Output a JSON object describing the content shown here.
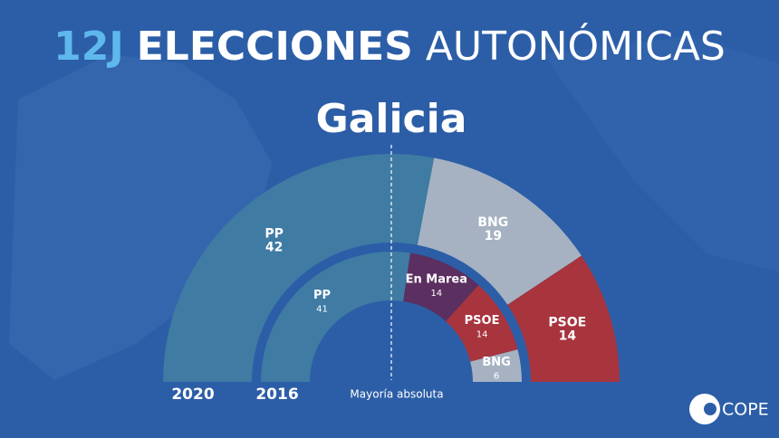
{
  "header": {
    "title": [
      "12J",
      "ELECCIONES",
      "AUTONÓMICAS"
    ],
    "subtitle": "Galicia"
  },
  "chart_data": [
    {
      "type": "semicircle",
      "label": "2020",
      "categories": [
        "PP",
        "BNG",
        "PSOE"
      ],
      "values": [
        42,
        19,
        14
      ],
      "colors": [
        "#3f7ba3",
        "#a6b2c2",
        "#a8343e"
      ]
    },
    {
      "type": "semicircle",
      "label": "2016",
      "categories": [
        "PP",
        "En Marea",
        "PSOE",
        "BNG"
      ],
      "values": [
        41,
        14,
        14,
        6
      ],
      "colors": [
        "#3f7ba3",
        "#5b2f5f",
        "#a8343e",
        "#a6b2c2"
      ]
    }
  ],
  "annotation": "Mayoría absoluta",
  "logo": "COPE"
}
